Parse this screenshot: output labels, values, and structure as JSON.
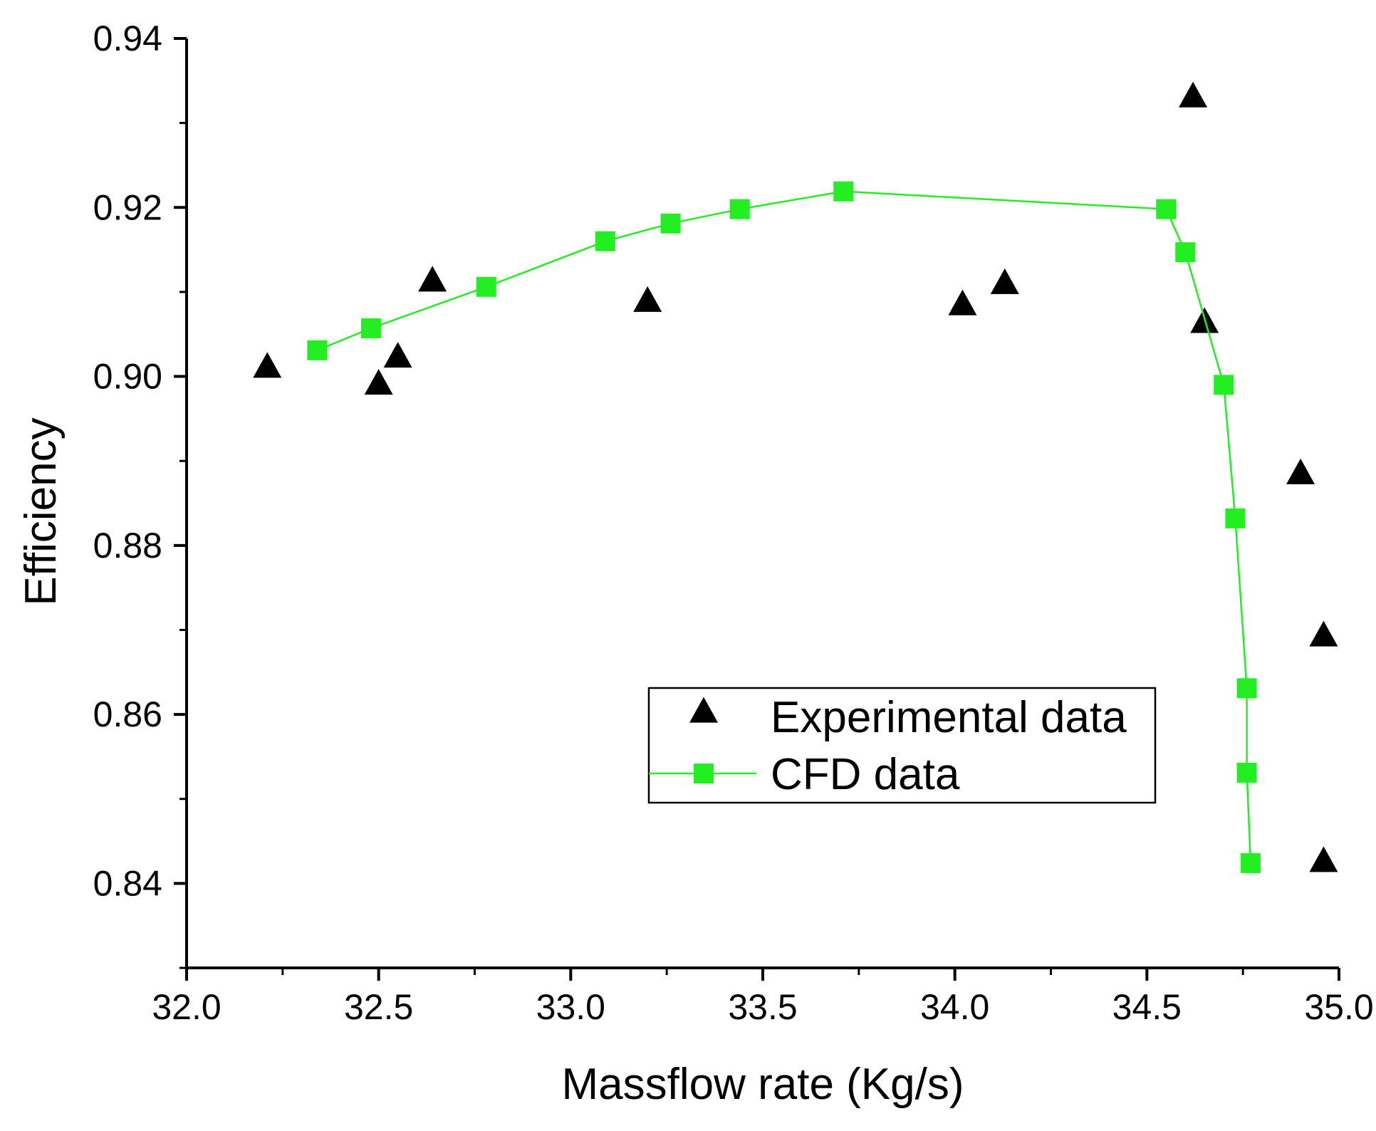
{
  "chart_data": {
    "type": "scatter",
    "title": "",
    "xlabel": "Massflow rate (Kg/s)",
    "ylabel": "Efficiency",
    "xlim": [
      32.0,
      35.0
    ],
    "ylim": [
      0.83,
      0.94
    ],
    "x_ticks": [
      32.0,
      32.5,
      33.0,
      33.5,
      34.0,
      34.5,
      35.0
    ],
    "x_tick_labels": [
      "32.0",
      "32.5",
      "33.0",
      "33.5",
      "34.0",
      "34.5",
      "35.0"
    ],
    "y_ticks": [
      0.84,
      0.86,
      0.88,
      0.9,
      0.92,
      0.94
    ],
    "y_tick_labels": [
      "0.84",
      "0.86",
      "0.88",
      "0.90",
      "0.92",
      "0.94"
    ],
    "grid": false,
    "legend_position": "lower-right-center",
    "series": [
      {
        "name": "Experimental data",
        "marker": "triangle",
        "line": false,
        "color": "#000000",
        "points": [
          [
            32.21,
            0.901
          ],
          [
            32.5,
            0.899
          ],
          [
            32.55,
            0.9022
          ],
          [
            32.64,
            0.9112
          ],
          [
            33.2,
            0.9088
          ],
          [
            34.02,
            0.9084
          ],
          [
            34.13,
            0.9109
          ],
          [
            34.62,
            0.933
          ],
          [
            34.65,
            0.9063
          ],
          [
            34.9,
            0.8884
          ],
          [
            34.96,
            0.8692
          ],
          [
            34.96,
            0.8425
          ]
        ]
      },
      {
        "name": "CFD data",
        "marker": "square",
        "line": true,
        "color": "#22ee22",
        "points": [
          [
            32.34,
            0.9031
          ],
          [
            32.48,
            0.9057
          ],
          [
            32.78,
            0.9106
          ],
          [
            33.09,
            0.916
          ],
          [
            33.26,
            0.9181
          ],
          [
            33.44,
            0.9198
          ],
          [
            33.71,
            0.9219
          ],
          [
            34.55,
            0.9198
          ],
          [
            34.6,
            0.9147
          ],
          [
            34.7,
            0.899
          ],
          [
            34.73,
            0.8832
          ],
          [
            34.76,
            0.8631
          ],
          [
            34.76,
            0.8531
          ],
          [
            34.77,
            0.8424
          ]
        ]
      }
    ]
  }
}
